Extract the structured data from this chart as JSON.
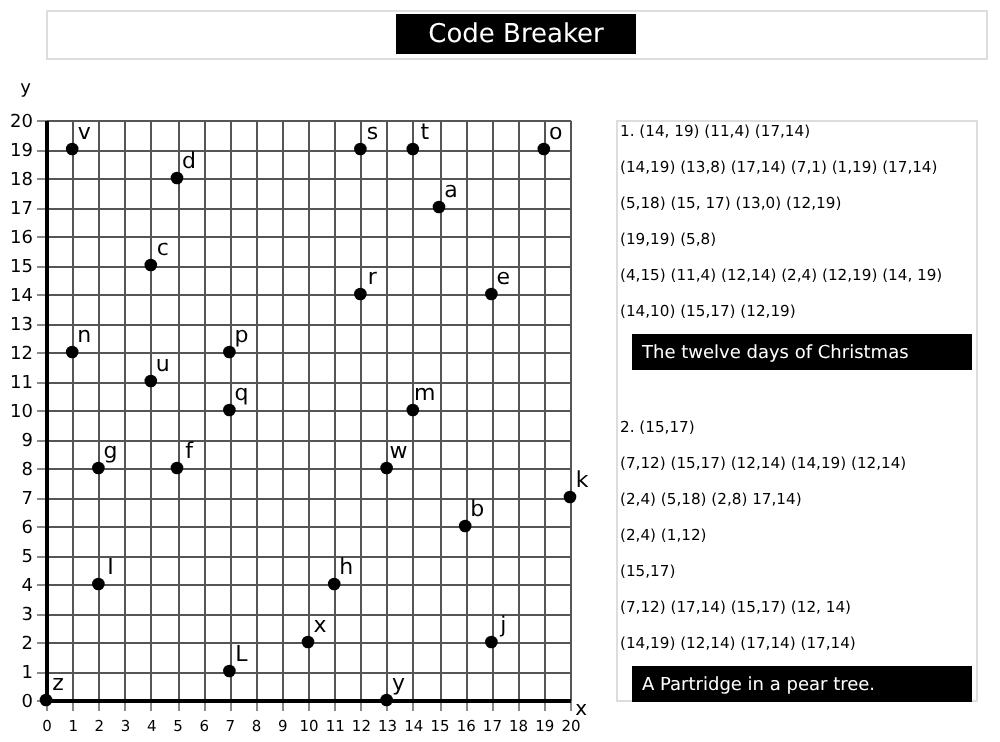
{
  "chart_data": {
    "type": "scatter",
    "title": "Code Breaker",
    "xlabel": "x",
    "ylabel": "y",
    "x": [
      1,
      5,
      4,
      1,
      4,
      7,
      7,
      12,
      14,
      19,
      15,
      12,
      17,
      14,
      2,
      5,
      13,
      20,
      16,
      2,
      11,
      10,
      17,
      7,
      0,
      13
    ],
    "values": [
      19,
      18,
      15,
      12,
      11,
      12,
      10,
      19,
      19,
      19,
      17,
      14,
      14,
      10,
      8,
      8,
      8,
      7,
      6,
      4,
      4,
      2,
      2,
      1,
      0,
      0
    ],
    "value_labels": [
      "v",
      "d",
      "c",
      "n",
      "u",
      "p",
      "q",
      "s",
      "t",
      "o",
      "a",
      "r",
      "e",
      "m",
      "g",
      "f",
      "w",
      "k",
      "b",
      "I",
      "h",
      "x",
      "j",
      "L",
      "z",
      "y"
    ],
    "color": "#000000",
    "marker": "circle",
    "grid": true,
    "xlim": [
      0,
      20
    ],
    "ylim": [
      0,
      20
    ],
    "xticks": [
      0,
      1,
      2,
      3,
      4,
      5,
      6,
      7,
      8,
      9,
      10,
      11,
      12,
      13,
      14,
      15,
      16,
      17,
      18,
      19,
      20
    ],
    "yticks": [
      0,
      1,
      2,
      3,
      4,
      5,
      6,
      7,
      8,
      9,
      10,
      11,
      12,
      13,
      14,
      15,
      16,
      17,
      18,
      19,
      20
    ],
    "annotations": [
      "1.     (14, 19) (11,4) (17,14)",
      "(14,19) (13,8) (17,14) (7,1) (1,19) (17,14)",
      "(5,18) (15, 17) (13,0) (12,19)",
      "(19,19) (5,8)",
      "(4,15) (11,4) (12,14) (2,4) (12,19) (14, 19)",
      "(14,10) (15,17) (12,19)",
      "The twelve days of Christmas",
      "2.     (15,17)",
      "(7,12) (15,17) (12,14) (14,19) (12,14)",
      "(2,4) (5,18) (2,8) 17,14)",
      "(2,4) (1,12)",
      "(15,17)",
      "(7,12) (17,14) (15,17) (12, 14)",
      "(14,19) (12,14) (17,14) (17,14)",
      "A Partridge in a pear tree."
    ]
  }
}
